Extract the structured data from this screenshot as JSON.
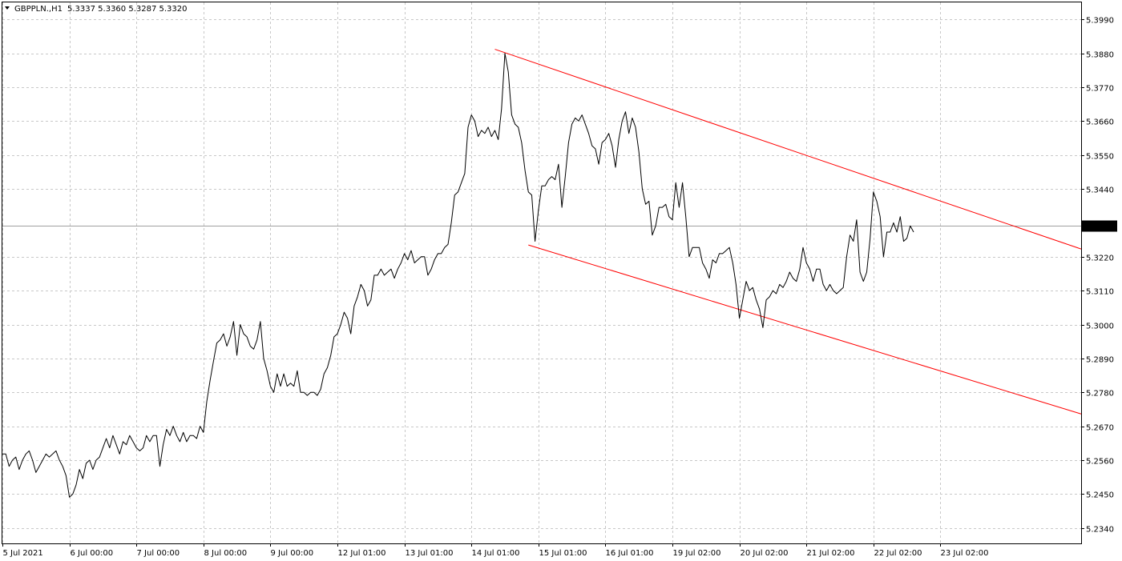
{
  "header": {
    "symbol": "GBPPLN.,H1",
    "ohlc": "5.3337 5.3360 5.3287 5.3320",
    "menu_icon": "triangle-down-icon"
  },
  "colors": {
    "background": "#ffffff",
    "grid": "#c8c8c8",
    "price_line": "#000000",
    "channel": "#ff0000",
    "current_price_line": "#a0a0a0"
  },
  "chart_data": {
    "type": "line",
    "title": "GBPPLN.,H1",
    "timeframe": "H1",
    "ylim": [
      5.229,
      5.4045
    ],
    "yticks": [
      "5.3990",
      "5.3880",
      "5.3770",
      "5.3660",
      "5.3550",
      "5.3440",
      "5.3320",
      "5.3220",
      "5.3110",
      "5.3000",
      "5.2890",
      "5.2780",
      "5.2670",
      "5.2560",
      "5.2450",
      "5.2340"
    ],
    "ytick_values": [
      5.399,
      5.388,
      5.377,
      5.366,
      5.355,
      5.344,
      5.332,
      5.322,
      5.311,
      5.3,
      5.289,
      5.278,
      5.267,
      5.256,
      5.245,
      5.234
    ],
    "xticks": [
      "5 Jul 2021",
      "6 Jul 00:00",
      "7 Jul 00:00",
      "8 Jul 00:00",
      "9 Jul 00:00",
      "12 Jul 01:00",
      "13 Jul 01:00",
      "14 Jul 01:00",
      "15 Jul 01:00",
      "16 Jul 01:00",
      "19 Jul 02:00",
      "20 Jul 02:00",
      "21 Jul 02:00",
      "22 Jul 02:00",
      "23 Jul 02:00"
    ],
    "xtick_index": [
      0,
      20,
      40,
      60,
      80,
      100,
      120,
      140,
      160,
      180,
      200,
      220,
      240,
      260,
      280
    ],
    "xlim": [
      0,
      322
    ],
    "current_price": 5.332,
    "current_price_label": "5.3320",
    "grid": true,
    "series": [
      {
        "values": [
          5.258,
          5.258,
          5.254,
          5.256,
          5.257,
          5.253,
          5.256,
          5.258,
          5.259,
          5.256,
          5.252,
          5.254,
          5.256,
          5.258,
          5.257,
          5.258,
          5.259,
          5.256,
          5.254,
          5.251,
          5.244,
          5.245,
          5.248,
          5.253,
          5.25,
          5.255,
          5.256,
          5.253,
          5.256,
          5.257,
          5.26,
          5.263,
          5.26,
          5.264,
          5.261,
          5.258,
          5.262,
          5.261,
          5.264,
          5.262,
          5.26,
          5.259,
          5.26,
          5.264,
          5.262,
          5.264,
          5.264,
          5.254,
          5.261,
          5.266,
          5.264,
          5.267,
          5.264,
          5.262,
          5.265,
          5.262,
          5.264,
          5.264,
          5.263,
          5.267,
          5.265,
          5.275,
          5.282,
          5.288,
          5.294,
          5.295,
          5.297,
          5.293,
          5.296,
          5.301,
          5.29,
          5.3,
          5.297,
          5.296,
          5.293,
          5.292,
          5.295,
          5.301,
          5.289,
          5.285,
          5.28,
          5.278,
          5.284,
          5.28,
          5.284,
          5.28,
          5.281,
          5.28,
          5.285,
          5.278,
          5.278,
          5.277,
          5.278,
          5.278,
          5.277,
          5.279,
          5.284,
          5.286,
          5.29,
          5.296,
          5.297,
          5.3,
          5.304,
          5.302,
          5.297,
          5.306,
          5.309,
          5.313,
          5.311,
          5.306,
          5.308,
          5.316,
          5.316,
          5.318,
          5.316,
          5.317,
          5.318,
          5.315,
          5.318,
          5.32,
          5.323,
          5.321,
          5.324,
          5.32,
          5.321,
          5.322,
          5.322,
          5.316,
          5.318,
          5.321,
          5.323,
          5.323,
          5.325,
          5.326,
          5.333,
          5.342,
          5.343,
          5.346,
          5.349,
          5.364,
          5.368,
          5.366,
          5.361,
          5.363,
          5.362,
          5.364,
          5.361,
          5.363,
          5.36,
          5.37,
          5.388,
          5.382,
          5.368,
          5.365,
          5.364,
          5.359,
          5.35,
          5.343,
          5.342,
          5.327,
          5.337,
          5.345,
          5.345,
          5.347,
          5.348,
          5.347,
          5.352,
          5.338,
          5.348,
          5.359,
          5.365,
          5.367,
          5.366,
          5.368,
          5.365,
          5.362,
          5.358,
          5.357,
          5.352,
          5.359,
          5.36,
          5.362,
          5.358,
          5.351,
          5.36,
          5.366,
          5.369,
          5.362,
          5.367,
          5.364,
          5.356,
          5.344,
          5.339,
          5.34,
          5.329,
          5.332,
          5.338,
          5.338,
          5.339,
          5.335,
          5.334,
          5.346,
          5.338,
          5.346,
          5.335,
          5.322,
          5.325,
          5.325,
          5.325,
          5.32,
          5.318,
          5.315,
          5.321,
          5.32,
          5.323,
          5.323,
          5.324,
          5.325,
          5.32,
          5.313,
          5.302,
          5.308,
          5.314,
          5.311,
          5.312,
          5.308,
          5.305,
          5.299,
          5.308,
          5.309,
          5.311,
          5.31,
          5.313,
          5.312,
          5.314,
          5.317,
          5.315,
          5.314,
          5.318,
          5.325,
          5.32,
          5.318,
          5.314,
          5.318,
          5.318,
          5.313,
          5.311,
          5.313,
          5.311,
          5.31,
          5.311,
          5.312,
          5.322,
          5.329,
          5.327,
          5.334,
          5.317,
          5.314,
          5.317,
          5.328,
          5.343,
          5.34,
          5.335,
          5.322,
          5.33,
          5.33,
          5.333,
          5.33,
          5.335,
          5.327,
          5.328,
          5.332,
          5.33
        ]
      }
    ],
    "channel": {
      "upper": {
        "from": {
          "index": 147,
          "value": 5.3893
        },
        "to": {
          "index": 322,
          "value": 5.3245
        }
      },
      "lower": {
        "from": {
          "index": 157,
          "value": 5.3258
        },
        "to": {
          "index": 322,
          "value": 5.271
        }
      }
    }
  }
}
